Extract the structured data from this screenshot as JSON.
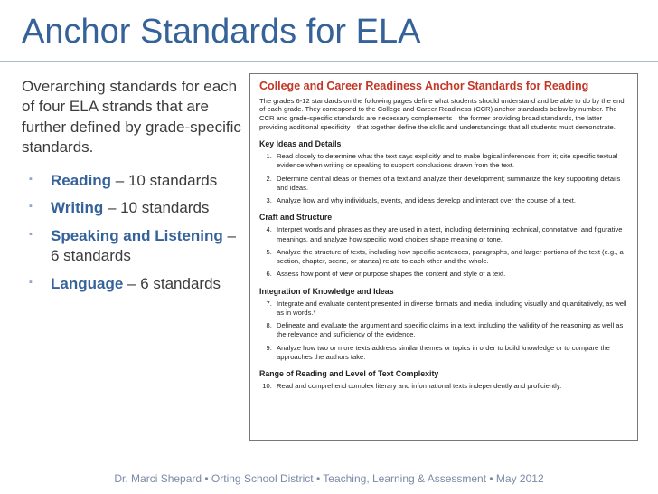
{
  "title": "Anchor Standards for ELA",
  "overarching": "Overarching  standards for each of four ELA strands that are further defined by grade-specific standards.",
  "strands": [
    {
      "name": "Reading",
      "suffix": " – 10 standards"
    },
    {
      "name": "Writing",
      "suffix": " – 10 standards"
    },
    {
      "name": "Speaking and Listening",
      "suffix": " – 6 standards"
    },
    {
      "name": "Language",
      "suffix": " – 6 standards"
    }
  ],
  "doc": {
    "title": "College and Career Readiness Anchor Standards for Reading",
    "intro": "The grades 6-12 standards on the following pages define what students should understand and be able to do by the end of each grade. They correspond to the College and Career Readiness (CCR) anchor standards below by number. The CCR and grade-specific standards are necessary complements—the former providing broad standards, the latter providing additional specificity—that together define the skills and understandings that all students must demonstrate.",
    "sections": [
      {
        "heading": "Key Ideas and Details",
        "items": [
          "Read closely to determine what the text says explicitly and to make logical inferences from it; cite specific textual evidence when writing or speaking to support conclusions drawn from the text.",
          "Determine central ideas or themes of a text and analyze their development; summarize the key supporting details and ideas.",
          "Analyze how and why individuals, events, and ideas develop and interact over the course of a text."
        ],
        "start": 1
      },
      {
        "heading": "Craft and Structure",
        "items": [
          "Interpret words and phrases as they are used in a text, including determining technical, connotative, and figurative meanings, and analyze how specific word choices shape meaning or tone.",
          "Analyze the structure of texts, including how specific sentences, paragraphs, and larger portions of the text (e.g., a section, chapter, scene, or stanza) relate to each other and the whole.",
          "Assess how point of view or purpose shapes the content and style of a text."
        ],
        "start": 4
      },
      {
        "heading": "Integration of Knowledge and Ideas",
        "items": [
          "Integrate and evaluate content presented in diverse formats and media, including visually and quantitatively, as well as in words.*",
          "Delineate and evaluate the argument and specific claims in a text, including the validity of the reasoning as well as the relevance and sufficiency of the evidence.",
          "Analyze how two or more texts address similar themes or topics in order to build knowledge or to compare the approaches the authors take."
        ],
        "start": 7
      },
      {
        "heading": "Range of Reading and Level of Text Complexity",
        "items": [
          "Read and comprehend complex literary and informational texts independently and proficiently."
        ],
        "start": 10
      }
    ]
  },
  "footer": "Dr. Marci Shepard • Orting School District • Teaching, Learning & Assessment  • May 2012",
  "colors": {
    "title": "#36629a",
    "docTitle": "#c23726",
    "bullet": "#8fa5c8",
    "hr": "#aeb9cf",
    "footer": "#7a8aa6"
  }
}
